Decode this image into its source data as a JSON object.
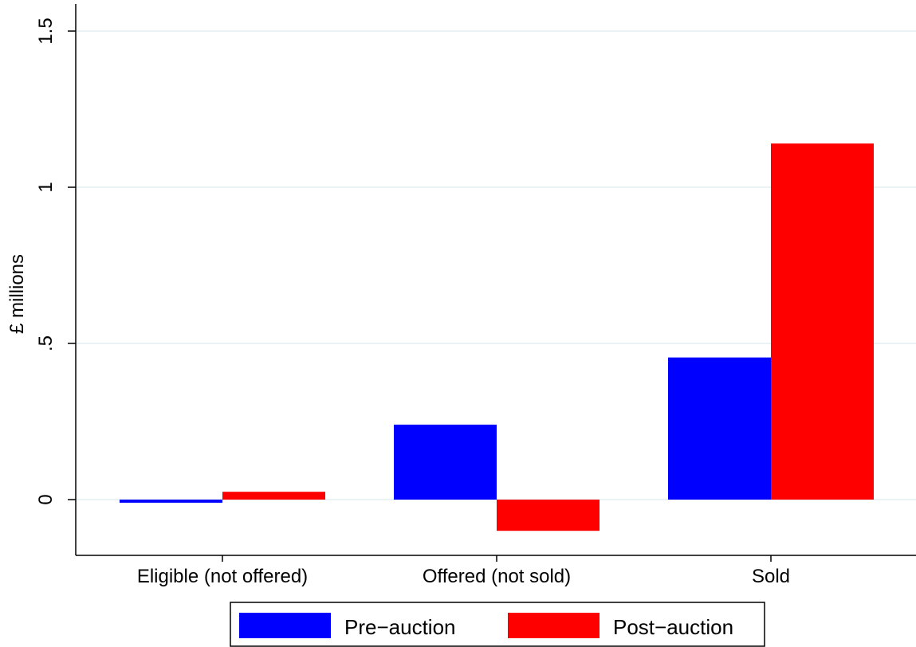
{
  "chart_data": {
    "type": "bar",
    "title": "",
    "xlabel": "",
    "ylabel": "£ millions",
    "ylim": [
      -0.175,
      1.575
    ],
    "yticks": [
      {
        "value": 0,
        "label": "0"
      },
      {
        "value": 0.5,
        "label": ".5"
      },
      {
        "value": 1,
        "label": "1"
      },
      {
        "value": 1.5,
        "label": "1.5"
      }
    ],
    "grid": true,
    "legend_position": "bottom",
    "categories": [
      "Eligible (not offered)",
      "Offered (not sold)",
      "Sold"
    ],
    "series": [
      {
        "name": "Pre−auction",
        "color": "#0000ff",
        "values": [
          -0.01,
          0.24,
          0.455
        ]
      },
      {
        "name": "Post−auction",
        "color": "#ff0000",
        "values": [
          0.025,
          -0.1,
          1.14
        ]
      }
    ]
  }
}
